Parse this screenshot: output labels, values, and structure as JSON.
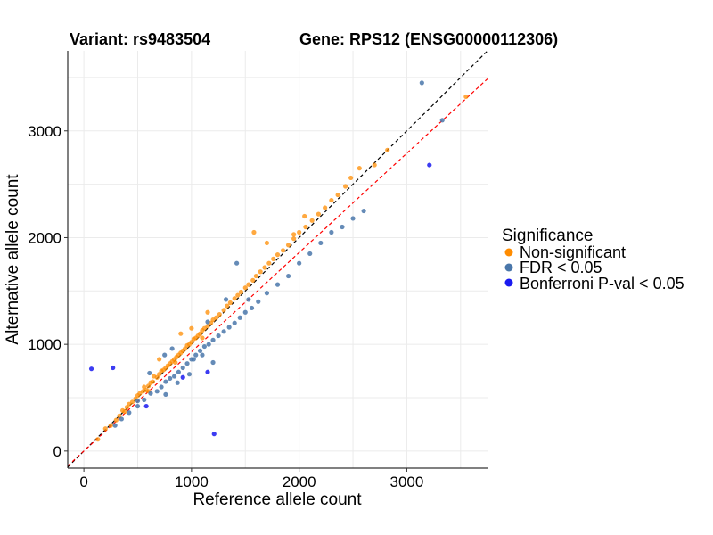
{
  "chart_data": {
    "type": "scatter",
    "title_left": "Variant: rs9483504",
    "title_right": "Gene: RPS12 (ENSG00000112306)",
    "xlabel": "Reference allele count",
    "ylabel": "Alternative allele count",
    "xlim": [
      -150,
      3750
    ],
    "ylim": [
      -160,
      3750
    ],
    "xticks": [
      0,
      1000,
      2000,
      3000
    ],
    "yticks": [
      0,
      1000,
      2000,
      3000
    ],
    "grid": true,
    "legend": {
      "title": "Significance",
      "position": "right",
      "entries": [
        {
          "label": "Non-significant",
          "color": "#FF8C00"
        },
        {
          "label": "FDR < 0.05",
          "color": "#4A77AA"
        },
        {
          "label": "Bonferroni P-val < 0.05",
          "color": "#1A1AF0"
        }
      ]
    },
    "reference_lines": [
      {
        "name": "identity",
        "slope": 1.0,
        "intercept": 0,
        "color": "#000000",
        "style": "dashed"
      },
      {
        "name": "fit",
        "slope": 0.93,
        "intercept": 0,
        "color": "#FF0000",
        "style": "dashed"
      }
    ],
    "series": [
      {
        "name": "Non-significant",
        "color": "#FF8C00",
        "points": [
          [
            130,
            110
          ],
          [
            200,
            210
          ],
          [
            250,
            240
          ],
          [
            300,
            290
          ],
          [
            330,
            330
          ],
          [
            360,
            380
          ],
          [
            400,
            410
          ],
          [
            420,
            440
          ],
          [
            450,
            460
          ],
          [
            480,
            490
          ],
          [
            500,
            520
          ],
          [
            520,
            540
          ],
          [
            550,
            560
          ],
          [
            560,
            600
          ],
          [
            580,
            570
          ],
          [
            600,
            610
          ],
          [
            620,
            640
          ],
          [
            640,
            650
          ],
          [
            650,
            700
          ],
          [
            680,
            690
          ],
          [
            700,
            720
          ],
          [
            720,
            750
          ],
          [
            740,
            760
          ],
          [
            760,
            780
          ],
          [
            780,
            800
          ],
          [
            800,
            820
          ],
          [
            820,
            840
          ],
          [
            840,
            860
          ],
          [
            860,
            880
          ],
          [
            880,
            900
          ],
          [
            900,
            920
          ],
          [
            920,
            940
          ],
          [
            940,
            960
          ],
          [
            960,
            990
          ],
          [
            980,
            1000
          ],
          [
            1000,
            1020
          ],
          [
            1020,
            1050
          ],
          [
            1040,
            1060
          ],
          [
            1060,
            1080
          ],
          [
            1080,
            1100
          ],
          [
            1100,
            1130
          ],
          [
            1120,
            1150
          ],
          [
            1150,
            1170
          ],
          [
            1180,
            1200
          ],
          [
            1200,
            1230
          ],
          [
            1230,
            1250
          ],
          [
            1260,
            1280
          ],
          [
            1300,
            1320
          ],
          [
            1330,
            1360
          ],
          [
            1360,
            1390
          ],
          [
            1400,
            1430
          ],
          [
            1430,
            1460
          ],
          [
            1460,
            1490
          ],
          [
            1500,
            1530
          ],
          [
            1530,
            1560
          ],
          [
            1570,
            1600
          ],
          [
            1600,
            1640
          ],
          [
            1640,
            1680
          ],
          [
            1680,
            1720
          ],
          [
            1720,
            1760
          ],
          [
            1760,
            1800
          ],
          [
            1800,
            1840
          ],
          [
            1850,
            1880
          ],
          [
            1900,
            1930
          ],
          [
            1950,
            1990
          ],
          [
            2000,
            2050
          ],
          [
            2060,
            2100
          ],
          [
            2120,
            2160
          ],
          [
            2180,
            2220
          ],
          [
            2240,
            2280
          ],
          [
            2300,
            2350
          ],
          [
            2360,
            2400
          ],
          [
            2430,
            2480
          ],
          [
            2480,
            2560
          ],
          [
            2560,
            2650
          ],
          [
            2700,
            2680
          ],
          [
            2820,
            2820
          ],
          [
            3550,
            3320
          ],
          [
            1580,
            2050
          ],
          [
            1700,
            1950
          ],
          [
            1950,
            2030
          ],
          [
            2050,
            2200
          ],
          [
            700,
            860
          ],
          [
            900,
            1100
          ],
          [
            1000,
            1150
          ],
          [
            1150,
            1300
          ],
          [
            380,
            370
          ],
          [
            600,
            560
          ],
          [
            850,
            830
          ],
          [
            1100,
            1060
          ]
        ]
      },
      {
        "name": "FDR < 0.05",
        "color": "#4A77AA",
        "points": [
          [
            290,
            240
          ],
          [
            350,
            300
          ],
          [
            420,
            360
          ],
          [
            500,
            420
          ],
          [
            560,
            480
          ],
          [
            620,
            540
          ],
          [
            680,
            560
          ],
          [
            720,
            600
          ],
          [
            760,
            650
          ],
          [
            800,
            680
          ],
          [
            840,
            700
          ],
          [
            880,
            740
          ],
          [
            920,
            780
          ],
          [
            960,
            820
          ],
          [
            1000,
            860
          ],
          [
            1040,
            900
          ],
          [
            1080,
            940
          ],
          [
            1120,
            980
          ],
          [
            1160,
            1000
          ],
          [
            1200,
            1040
          ],
          [
            1250,
            1080
          ],
          [
            1300,
            1120
          ],
          [
            1350,
            1160
          ],
          [
            1400,
            1200
          ],
          [
            1450,
            1250
          ],
          [
            1500,
            1300
          ],
          [
            1560,
            1340
          ],
          [
            1620,
            1400
          ],
          [
            1700,
            1480
          ],
          [
            1800,
            1560
          ],
          [
            1900,
            1640
          ],
          [
            2000,
            1760
          ],
          [
            2100,
            1850
          ],
          [
            2200,
            1950
          ],
          [
            2300,
            2050
          ],
          [
            2400,
            2100
          ],
          [
            2500,
            2180
          ],
          [
            2600,
            2250
          ],
          [
            3330,
            3100
          ],
          [
            3140,
            3450
          ],
          [
            610,
            730
          ],
          [
            750,
            900
          ],
          [
            820,
            960
          ],
          [
            1150,
            1210
          ],
          [
            1420,
            1760
          ],
          [
            1020,
            860
          ],
          [
            1200,
            830
          ],
          [
            1100,
            900
          ],
          [
            980,
            720
          ],
          [
            870,
            640
          ],
          [
            760,
            530
          ],
          [
            500,
            470
          ],
          [
            1320,
            1420
          ],
          [
            1530,
            1420
          ]
        ]
      },
      {
        "name": "Bonferroni P-val < 0.05",
        "color": "#1A1AF0",
        "points": [
          [
            70,
            770
          ],
          [
            270,
            780
          ],
          [
            1210,
            160
          ],
          [
            3210,
            2680
          ],
          [
            1150,
            740
          ],
          [
            920,
            690
          ],
          [
            580,
            420
          ]
        ]
      }
    ]
  }
}
